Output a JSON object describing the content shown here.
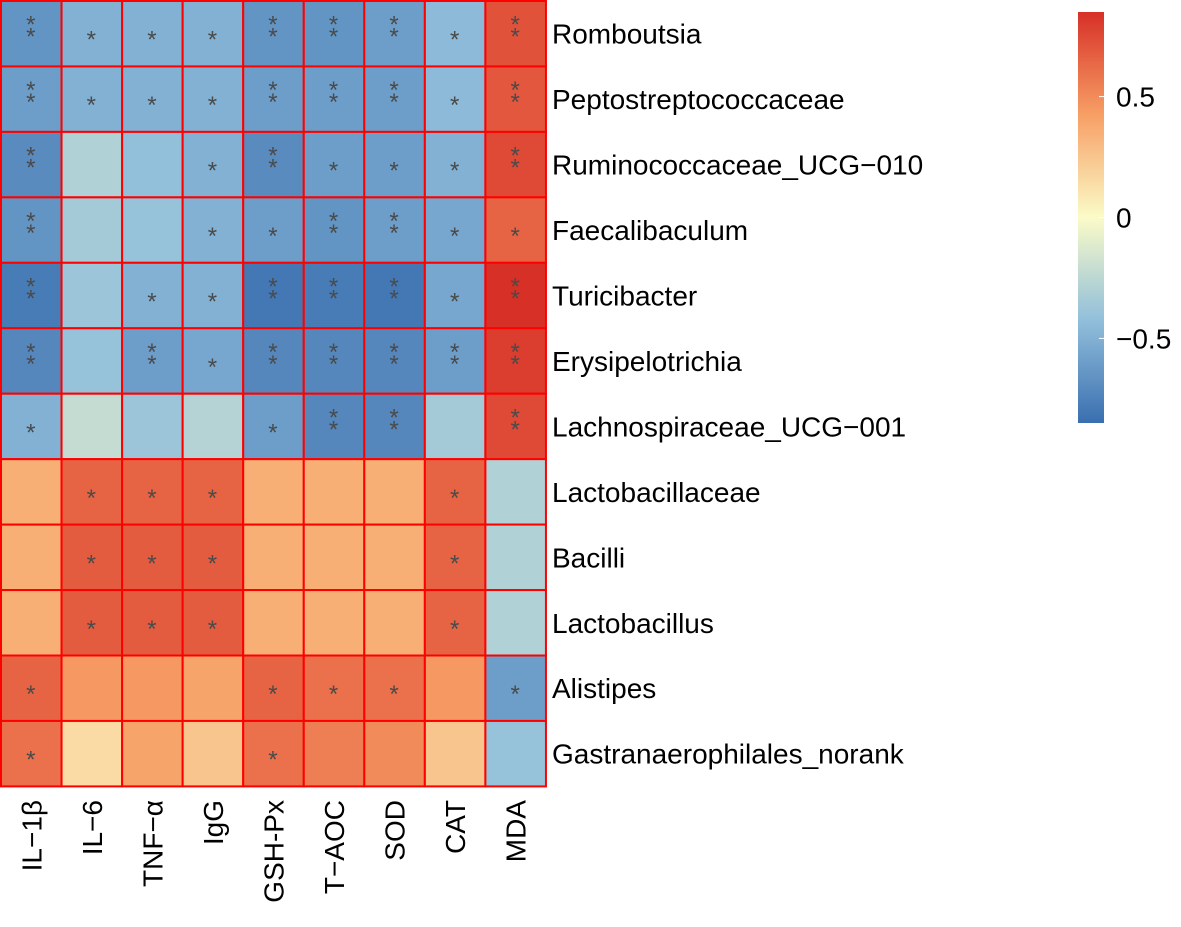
{
  "chart_data": {
    "type": "heatmap",
    "title": "",
    "rows": [
      "Romboutsia",
      "Peptostreptococcaceae",
      "Ruminococcaceae_UCG−010",
      "Faecalibaculum",
      "Turicibacter",
      "Erysipelotrichia",
      "Lachnospiraceae_UCG−001",
      "Lactobacillaceae",
      "Bacilli",
      "Lactobacillus",
      "Alistipes",
      "Gastranaerophilales_norank"
    ],
    "columns": [
      "IL−1β",
      "IL−6",
      "TNF−α",
      "IgG",
      "GSH-Px",
      "T−AOC",
      "SOD",
      "CAT",
      "MDA"
    ],
    "values": [
      [
        -0.65,
        -0.5,
        -0.5,
        -0.5,
        -0.65,
        -0.65,
        -0.6,
        -0.45,
        0.72
      ],
      [
        -0.6,
        -0.5,
        -0.5,
        -0.5,
        -0.6,
        -0.6,
        -0.6,
        -0.45,
        0.7
      ],
      [
        -0.7,
        -0.3,
        -0.42,
        -0.5,
        -0.7,
        -0.6,
        -0.6,
        -0.5,
        0.75
      ],
      [
        -0.65,
        -0.35,
        -0.4,
        -0.5,
        -0.6,
        -0.65,
        -0.6,
        -0.55,
        0.65
      ],
      [
        -0.78,
        -0.38,
        -0.5,
        -0.5,
        -0.8,
        -0.78,
        -0.8,
        -0.55,
        0.85
      ],
      [
        -0.72,
        -0.4,
        -0.6,
        -0.55,
        -0.72,
        -0.72,
        -0.72,
        -0.6,
        0.8
      ],
      [
        -0.5,
        -0.22,
        -0.38,
        -0.28,
        -0.6,
        -0.72,
        -0.72,
        -0.35,
        0.75
      ],
      [
        0.35,
        0.65,
        0.65,
        0.65,
        0.35,
        0.35,
        0.35,
        0.65,
        -0.3
      ],
      [
        0.35,
        0.68,
        0.68,
        0.68,
        0.35,
        0.35,
        0.35,
        0.65,
        -0.3
      ],
      [
        0.35,
        0.68,
        0.68,
        0.68,
        0.35,
        0.35,
        0.35,
        0.65,
        -0.3
      ],
      [
        0.65,
        0.45,
        0.45,
        0.4,
        0.65,
        0.6,
        0.6,
        0.45,
        -0.6
      ],
      [
        0.6,
        0.15,
        0.4,
        0.25,
        0.6,
        0.55,
        0.5,
        0.25,
        -0.4
      ]
    ],
    "significance": [
      [
        "**",
        "*",
        "*",
        "*",
        "**",
        "**",
        "**",
        "*",
        "**"
      ],
      [
        "**",
        "*",
        "*",
        "*",
        "**",
        "**",
        "**",
        "*",
        "**"
      ],
      [
        "**",
        "",
        "",
        "*",
        "**",
        "*",
        "*",
        "*",
        "**"
      ],
      [
        "**",
        "",
        "",
        "*",
        "*",
        "**",
        "**",
        "*",
        "*"
      ],
      [
        "**",
        "",
        "*",
        "*",
        "**",
        "**",
        "**",
        "*",
        "**"
      ],
      [
        "**",
        "",
        "**",
        "*",
        "**",
        "**",
        "**",
        "**",
        "**"
      ],
      [
        "*",
        "",
        "",
        "",
        "*",
        "**",
        "**",
        "",
        "**"
      ],
      [
        "",
        "*",
        "*",
        "*",
        "",
        "",
        "",
        "*",
        ""
      ],
      [
        "",
        "*",
        "*",
        "*",
        "",
        "",
        "",
        "*",
        ""
      ],
      [
        "",
        "*",
        "*",
        "*",
        "",
        "",
        "",
        "*",
        ""
      ],
      [
        "*",
        "",
        "",
        "",
        "*",
        "*",
        "*",
        "",
        "*"
      ],
      [
        "*",
        "",
        "",
        "",
        "*",
        "",
        "",
        "",
        ""
      ]
    ],
    "color_range": [
      -0.85,
      0.85
    ],
    "legend": {
      "ticks": [
        0.5,
        0,
        -0.5
      ],
      "tick_labels": [
        "0.5",
        "0",
        "−0.5"
      ],
      "placement": "top-right"
    },
    "colors": {
      "low": "#3a6fb0",
      "mid": "#fbfbc8",
      "high": "#d73027",
      "cell_border": "#ff0000",
      "star": "#4a4a4a"
    }
  }
}
